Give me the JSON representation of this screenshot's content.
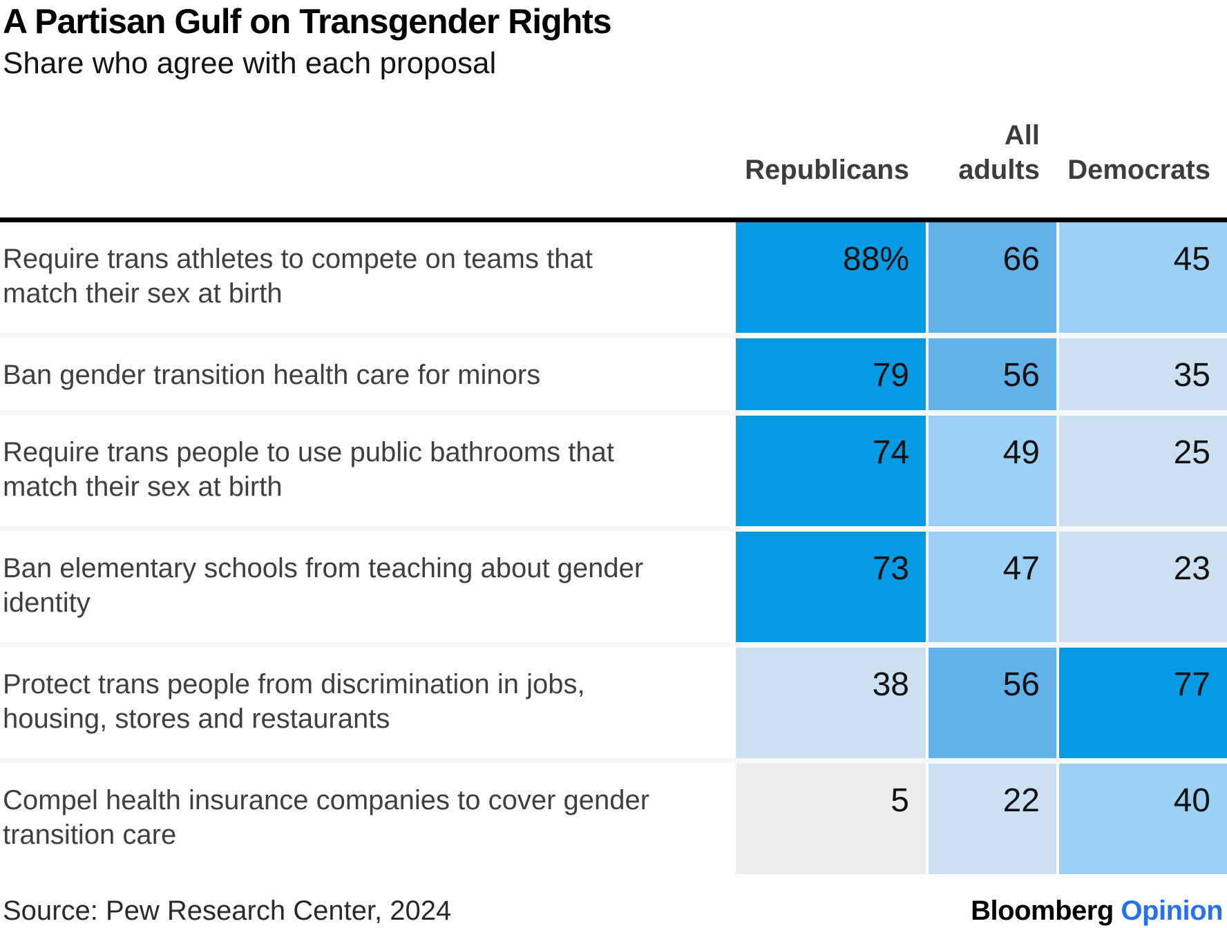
{
  "header": {
    "title": "A Partisan Gulf on Transgender Rights",
    "subtitle": "Share who agree with each proposal"
  },
  "table": {
    "headers": [
      "Republicans",
      "All\nadults",
      "Democrats"
    ],
    "rows": [
      {
        "label": "Require trans athletes to compete on teams that\nmatch their sex at birth",
        "values": [
          88,
          66,
          45
        ],
        "display": [
          "88%",
          "66",
          "45"
        ],
        "colors": [
          "#049be4",
          "#62b1e8",
          "#9cd0f5"
        ]
      },
      {
        "label": "Ban gender transition health care for minors",
        "values": [
          79,
          56,
          35
        ],
        "display": [
          "79",
          "56",
          "35"
        ],
        "colors": [
          "#049be4",
          "#62b1e8",
          "#cde0f2"
        ]
      },
      {
        "label": "Require trans people to use public bathrooms that\nmatch their sex at birth",
        "values": [
          74,
          49,
          25
        ],
        "display": [
          "74",
          "49",
          "25"
        ],
        "colors": [
          "#049be4",
          "#9cd0f5",
          "#cde0f2"
        ]
      },
      {
        "label": "Ban elementary schools from teaching about gender\nidentity",
        "values": [
          73,
          47,
          23
        ],
        "display": [
          "73",
          "47",
          "23"
        ],
        "colors": [
          "#049be4",
          "#9cd0f5",
          "#cde0f2"
        ]
      },
      {
        "label": "Protect trans people from discrimination in jobs,\nhousing, stores and restaurants",
        "values": [
          38,
          56,
          77
        ],
        "display": [
          "38",
          "56",
          "77"
        ],
        "colors": [
          "#cde0f2",
          "#62b1e8",
          "#049be4"
        ]
      },
      {
        "label": "Compel health insurance companies to cover gender\ntransition care",
        "values": [
          5,
          22,
          40
        ],
        "display": [
          "5",
          "22",
          "40"
        ],
        "colors": [
          "#ededee",
          "#cde0f2",
          "#9cd0f5"
        ]
      }
    ]
  },
  "footer": {
    "source": "Source: Pew Research Center, 2024",
    "brand": "Bloomberg",
    "brand_suffix": "Opinion"
  },
  "colors": {
    "scale_high": "#049be4",
    "scale_mid": "#62b1e8",
    "scale_low_mid": "#9cd0f5",
    "scale_low": "#cde0f2",
    "scale_min_gray": "#ededee",
    "top_rule": "#000000",
    "opinion_blue": "#2571ee"
  },
  "chart_data": {
    "type": "heatmap",
    "title": "A Partisan Gulf on Transgender Rights",
    "subtitle": "Share who agree with each proposal",
    "unit": "percent",
    "columns": [
      "Republicans",
      "All adults",
      "Democrats"
    ],
    "categories": [
      "Require trans athletes to compete on teams that match their sex at birth",
      "Ban gender transition health care for minors",
      "Require trans people to use public bathrooms that match their sex at birth",
      "Ban elementary schools from teaching about gender identity",
      "Protect trans people from discrimination in jobs, housing, stores and restaurants",
      "Compel health insurance companies to cover gender transition care"
    ],
    "series": [
      {
        "name": "Republicans",
        "values": [
          88,
          79,
          74,
          73,
          38,
          5
        ]
      },
      {
        "name": "All adults",
        "values": [
          66,
          56,
          49,
          47,
          56,
          22
        ]
      },
      {
        "name": "Democrats",
        "values": [
          45,
          35,
          25,
          23,
          77,
          40
        ]
      }
    ],
    "legend_position": "none",
    "grid": false,
    "color_mapping": "higher value = deeper blue; lowest value shown gray",
    "source": "Source: Pew Research Center, 2024"
  }
}
